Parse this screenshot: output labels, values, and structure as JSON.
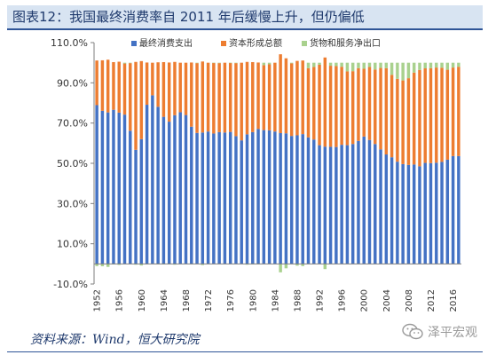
{
  "title": "图表12：我国最终消费率自 2011 年后缓慢上升，但仍偏低",
  "source": "资料来源：Wind，恒大研究院",
  "watermark": "泽平宏观",
  "colors": {
    "consumption": "#4472c4",
    "capital": "#ed7d31",
    "netexports": "#a9d18e",
    "titlebg": "#d8e4f2",
    "title": "#1f3a6d"
  },
  "chart_data": {
    "type": "bar",
    "stacked": true,
    "x": [
      1952,
      1953,
      1954,
      1955,
      1956,
      1957,
      1958,
      1959,
      1960,
      1961,
      1962,
      1963,
      1964,
      1965,
      1966,
      1967,
      1968,
      1969,
      1970,
      1971,
      1972,
      1973,
      1974,
      1975,
      1976,
      1977,
      1978,
      1979,
      1980,
      1981,
      1982,
      1983,
      1984,
      1985,
      1986,
      1987,
      1988,
      1989,
      1990,
      1991,
      1992,
      1993,
      1994,
      1995,
      1996,
      1997,
      1998,
      1999,
      2000,
      2001,
      2002,
      2003,
      2004,
      2005,
      2006,
      2007,
      2008,
      2009,
      2010,
      2011,
      2012,
      2013,
      2014,
      2015,
      2016,
      2017
    ],
    "xticks": [
      "1952",
      "1956",
      "1960",
      "1964",
      "1968",
      "1972",
      "1976",
      "1980",
      "1984",
      "1988",
      "1992",
      "1996",
      "2000",
      "2004",
      "2008",
      "2012",
      "2016"
    ],
    "ylim": [
      -10,
      110
    ],
    "yticks": [
      "-10.0%",
      "10.0%",
      "30.0%",
      "50.0%",
      "70.0%",
      "90.0%",
      "110.0%"
    ],
    "ytick_values": [
      -10,
      10,
      30,
      50,
      70,
      90,
      110
    ],
    "legend_position": "top",
    "series": [
      {
        "name": "最终消费支出",
        "color": "#4472c4",
        "values": [
          78.9,
          76.1,
          75.3,
          76.6,
          75.2,
          74.2,
          66.2,
          56.7,
          62.0,
          79.1,
          83.8,
          78.1,
          73.1,
          70.7,
          73.9,
          75.4,
          74.0,
          68.2,
          65.1,
          65.3,
          65.8,
          64.8,
          65.5,
          65.3,
          65.6,
          63.5,
          61.4,
          64.4,
          65.5,
          67.1,
          66.5,
          66.4,
          65.8,
          65.0,
          64.9,
          63.6,
          63.9,
          64.5,
          62.9,
          61.8,
          59.0,
          58.3,
          58.2,
          58.1,
          59.2,
          59.0,
          59.6,
          61.1,
          63.3,
          61.6,
          59.6,
          56.9,
          54.4,
          53.0,
          50.8,
          49.6,
          49.2,
          49.4,
          48.5,
          50.2,
          50.1,
          50.3,
          50.7,
          51.8,
          53.6,
          53.6
        ]
      },
      {
        "name": "资本形成总额",
        "color": "#ed7d31",
        "values": [
          22.2,
          25.1,
          26.2,
          23.7,
          25.3,
          25.4,
          33.6,
          43.7,
          38.8,
          21.0,
          16.2,
          22.1,
          27.2,
          29.4,
          26.5,
          24.6,
          26.0,
          31.9,
          34.7,
          35.3,
          34.2,
          35.1,
          34.3,
          34.7,
          34.3,
          36.3,
          38.6,
          36.0,
          34.8,
          33.0,
          32.3,
          32.8,
          34.2,
          39.2,
          37.3,
          36.1,
          37.0,
          36.6,
          34.4,
          36.1,
          40.0,
          44.3,
          40.3,
          40.2,
          38.8,
          36.7,
          36.2,
          36.2,
          33.7,
          36.3,
          37.0,
          40.5,
          42.9,
          41.0,
          41.2,
          41.6,
          43.1,
          45.7,
          47.9,
          47.0,
          47.2,
          47.3,
          46.8,
          44.7,
          44.0,
          44.4
        ]
      },
      {
        "name": "货物和服务净出口",
        "color": "#a9d18e",
        "values": [
          -1.1,
          -1.2,
          -1.5,
          -0.3,
          -0.5,
          0.4,
          0.2,
          -0.4,
          -0.8,
          -0.1,
          -0.0,
          -0.2,
          -0.3,
          -0.1,
          -0.4,
          0.0,
          0.0,
          -0.1,
          0.2,
          -0.6,
          0.0,
          0.1,
          0.2,
          0.0,
          0.1,
          0.2,
          0.0,
          -0.4,
          -0.3,
          -0.1,
          1.2,
          0.8,
          0.0,
          -4.2,
          -2.2,
          0.3,
          -0.9,
          -1.1,
          2.7,
          2.1,
          1.0,
          -2.6,
          1.5,
          1.7,
          2.0,
          4.3,
          4.2,
          2.7,
          3.0,
          2.1,
          3.4,
          2.6,
          2.7,
          6.0,
          8.0,
          8.8,
          7.7,
          4.9,
          3.6,
          2.8,
          2.7,
          2.4,
          2.5,
          3.5,
          2.4,
          2.0
        ]
      }
    ]
  }
}
